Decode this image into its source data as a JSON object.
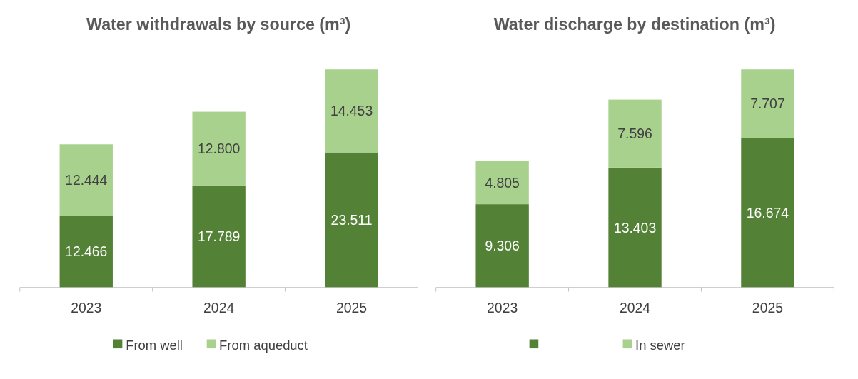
{
  "chart_data": [
    {
      "type": "bar",
      "title": "Water withdrawals by source (m³)",
      "categories": [
        "2023",
        "2024",
        "2025"
      ],
      "stacked": true,
      "legend": "bottom",
      "series": [
        {
          "name": "From well",
          "color": "#538135",
          "values": [
            12466,
            17789,
            23511
          ],
          "value_labels": [
            "12.466",
            "17.789",
            "23.511"
          ]
        },
        {
          "name": "From aqueduct",
          "color": "#a9d18e",
          "values": [
            12444,
            12800,
            14453
          ],
          "value_labels": [
            "12.444",
            "12.800",
            "14.453"
          ]
        }
      ]
    },
    {
      "type": "bar",
      "title": "Water discharge by destination (m³)",
      "categories": [
        "2023",
        "2024",
        "2025"
      ],
      "stacked": true,
      "legend": "bottom",
      "series": [
        {
          "color": "#538135",
          "values": [
            9306,
            13403,
            16674
          ],
          "value_labels": [
            "9.306",
            "13.403",
            "16.674"
          ]
        },
        {
          "name": "In sewer",
          "color": "#a9d18e",
          "values": [
            4805,
            7596,
            7707
          ],
          "value_labels": [
            "4.805",
            "7.596",
            "7.707"
          ]
        }
      ]
    }
  ]
}
